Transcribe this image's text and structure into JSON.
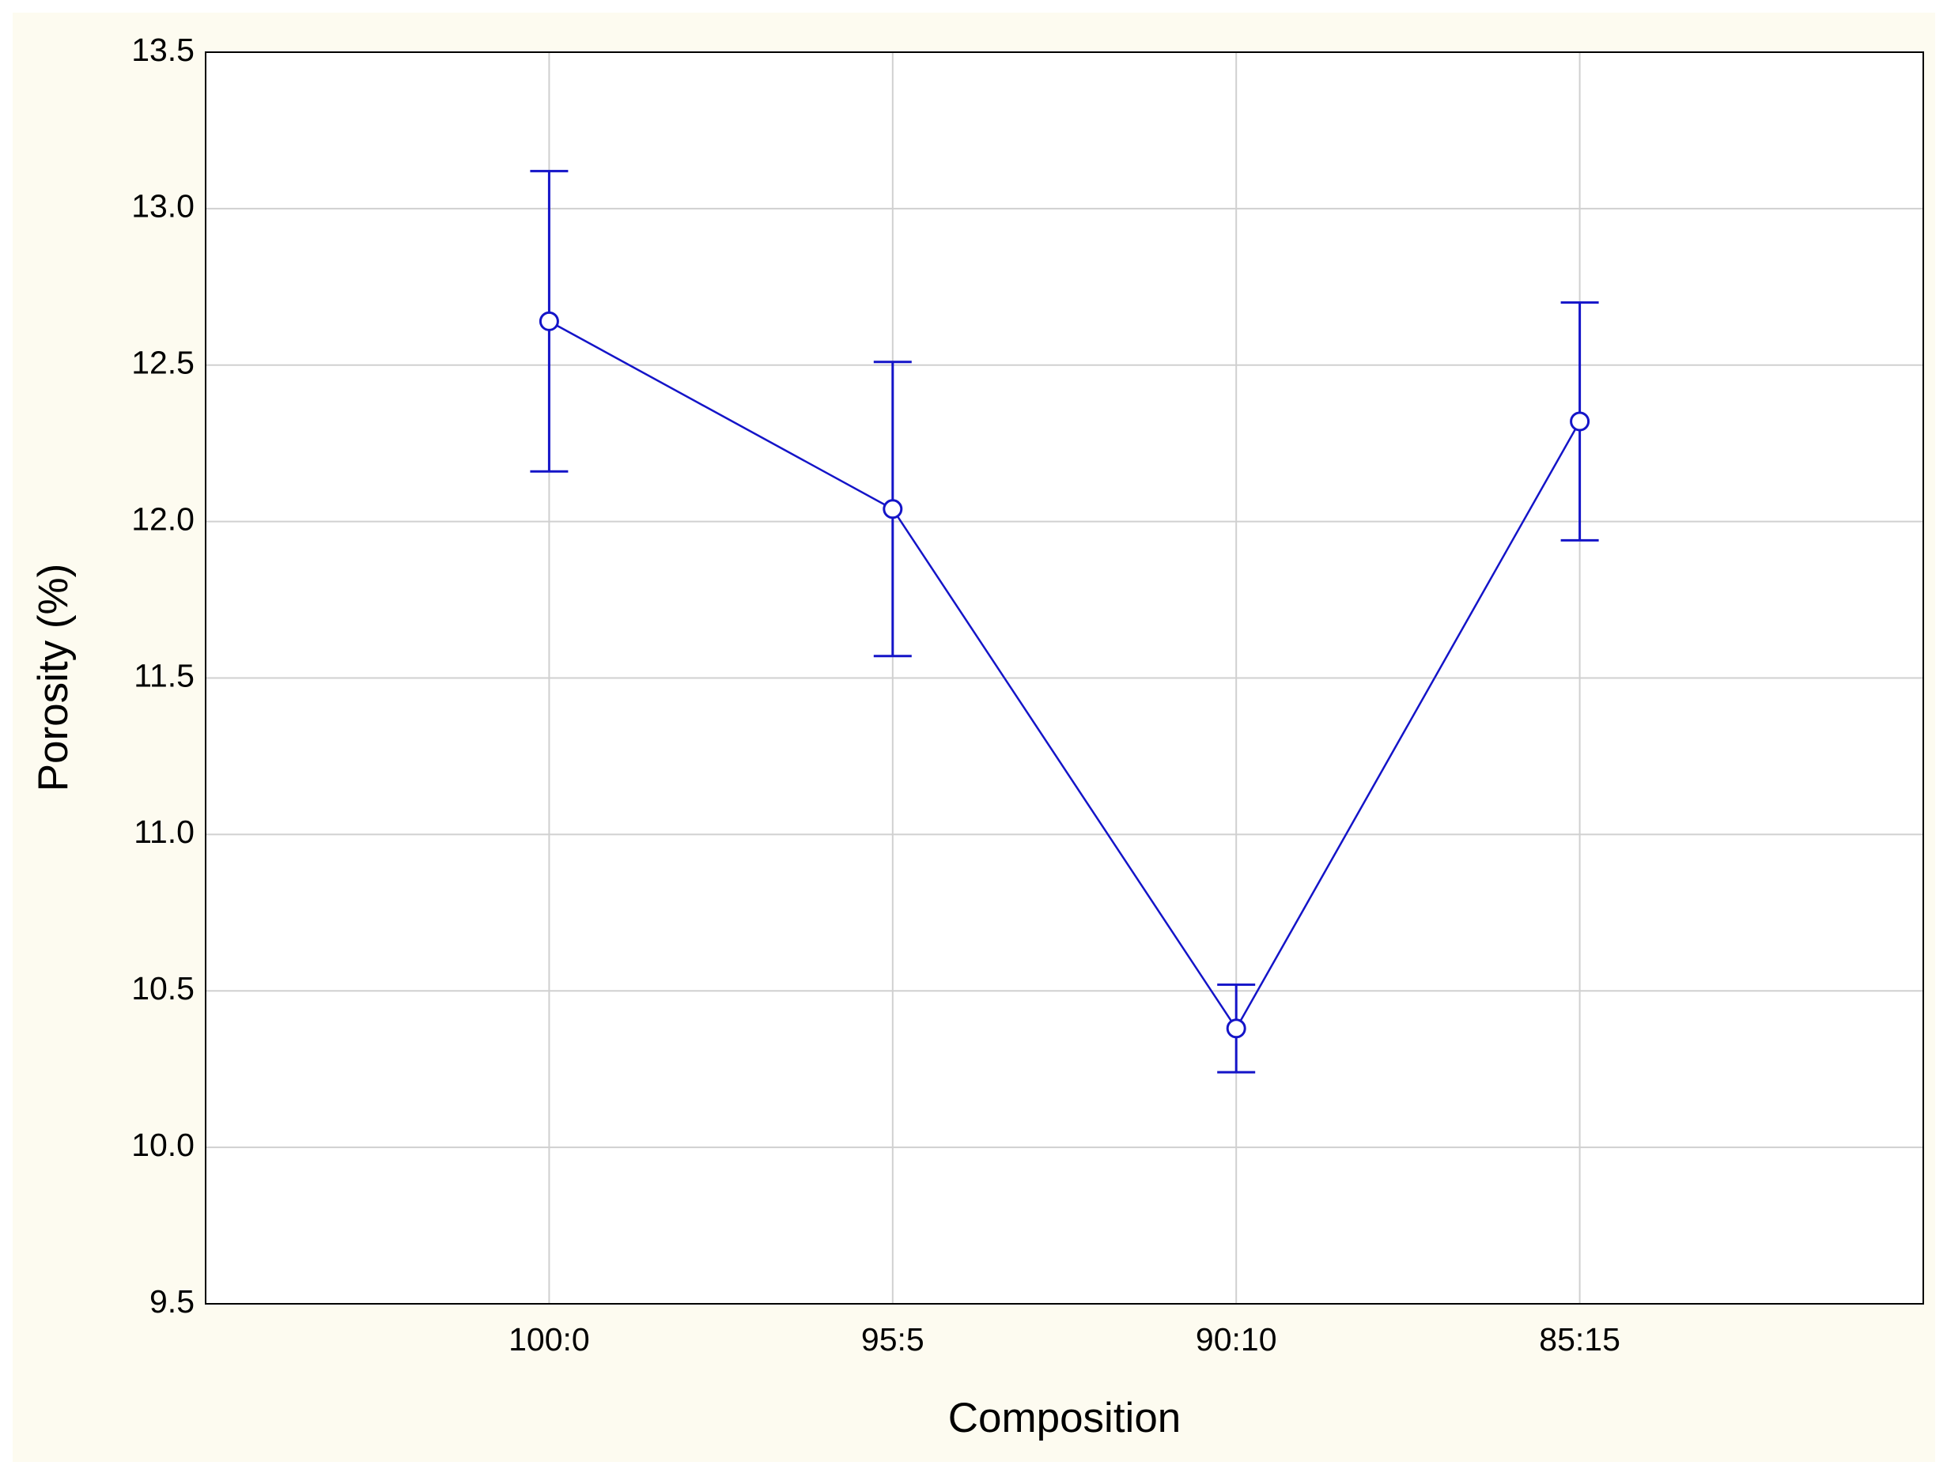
{
  "chart_data": {
    "type": "line",
    "x_label": "Composition",
    "y_label": "Porosity (%)",
    "categories": [
      "100:0",
      "95:5",
      "90:10",
      "85:15"
    ],
    "series": [
      {
        "color": "#1414c8",
        "values": [
          12.64,
          12.04,
          10.38,
          12.32
        ],
        "errors": [
          0.48,
          0.47,
          0.14,
          0.38
        ]
      }
    ],
    "ylim": [
      9.5,
      13.5
    ],
    "yticks": [
      9.5,
      {
        "value": 10,
        "label": "10.0"
      },
      10.5,
      {
        "value": 11,
        "label": "11.0"
      },
      11.5,
      {
        "value": 12,
        "label": "12.0"
      },
      12.5,
      {
        "value": 13,
        "label": "13.0"
      },
      13.5
    ],
    "grid": true
  }
}
